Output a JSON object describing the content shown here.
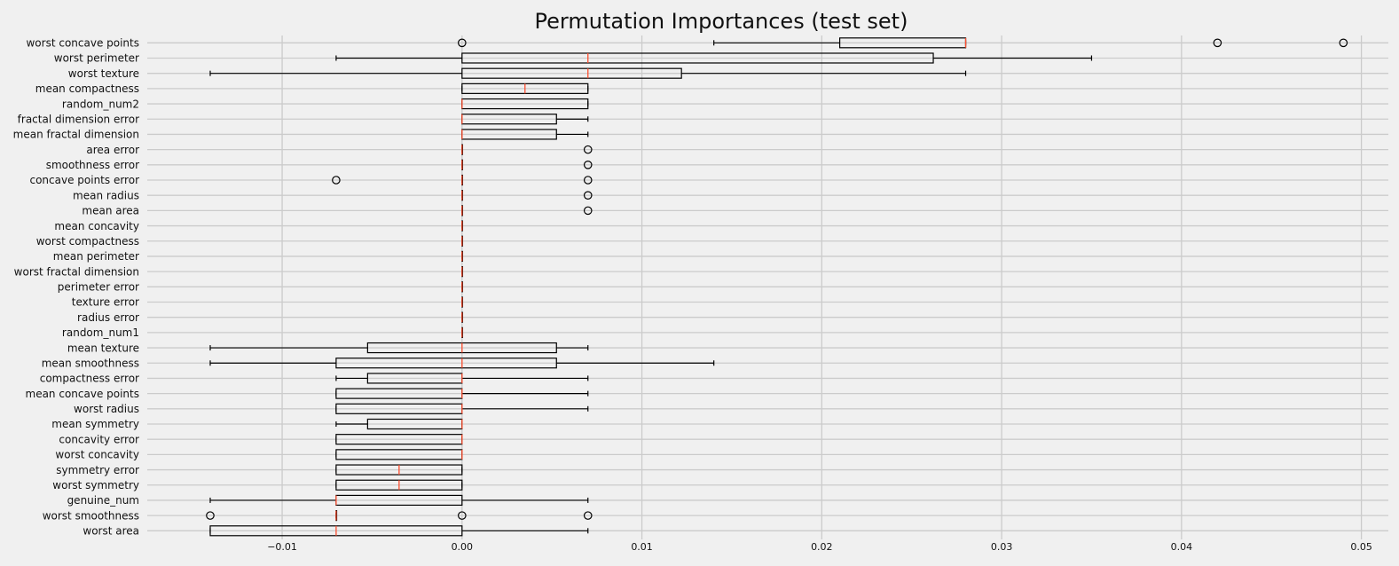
{
  "chart_data": {
    "type": "boxplot",
    "orientation": "horizontal",
    "title": "Permutation Importances (test set)",
    "xlabel": "",
    "ylabel": "",
    "xlim": [
      -0.0175,
      0.0515
    ],
    "xticks": [
      -0.01,
      0.0,
      0.01,
      0.02,
      0.03,
      0.04,
      0.05
    ],
    "xtick_labels": [
      "−0.01",
      "0.00",
      "0.01",
      "0.02",
      "0.03",
      "0.04",
      "0.05"
    ],
    "grid": true,
    "colors": {
      "background": "#f0f0f0",
      "grid": "#cbcbcb",
      "box": "#000000",
      "median": "#fc4f30",
      "random_label": "#ff0000",
      "genuine_label": "#008000",
      "default_label": "#000000"
    },
    "features": [
      {
        "name": "worst concave points",
        "label_color": "default",
        "whislo": 0.014,
        "q1": 0.021,
        "med": 0.028,
        "q3": 0.028,
        "whishi": 0.028,
        "fliers": [
          0.0,
          0.042,
          0.049
        ]
      },
      {
        "name": "worst perimeter",
        "label_color": "default",
        "whislo": -0.007,
        "q1": 0.0,
        "med": 0.007,
        "q3": 0.0262,
        "whishi": 0.035,
        "fliers": []
      },
      {
        "name": "worst texture",
        "label_color": "default",
        "whislo": -0.014,
        "q1": 0.0,
        "med": 0.007,
        "q3": 0.0122,
        "whishi": 0.028,
        "fliers": []
      },
      {
        "name": "mean compactness",
        "label_color": "default",
        "whislo": 0.0,
        "q1": 0.0,
        "med": 0.0035,
        "q3": 0.007,
        "whishi": 0.007,
        "fliers": []
      },
      {
        "name": "random_num2",
        "label_color": "random",
        "whislo": 0.0,
        "q1": 0.0,
        "med": 0.0,
        "q3": 0.007,
        "whishi": 0.007,
        "fliers": []
      },
      {
        "name": "fractal dimension error",
        "label_color": "default",
        "whislo": 0.0,
        "q1": 0.0,
        "med": 0.0,
        "q3": 0.00525,
        "whishi": 0.007,
        "fliers": []
      },
      {
        "name": "mean fractal dimension",
        "label_color": "default",
        "whislo": 0.0,
        "q1": 0.0,
        "med": 0.0,
        "q3": 0.00525,
        "whishi": 0.007,
        "fliers": []
      },
      {
        "name": "area error",
        "label_color": "default",
        "whislo": 0.0,
        "q1": 0.0,
        "med": 0.0,
        "q3": 0.0,
        "whishi": 0.0,
        "fliers": [
          0.007
        ]
      },
      {
        "name": "smoothness error",
        "label_color": "default",
        "whislo": 0.0,
        "q1": 0.0,
        "med": 0.0,
        "q3": 0.0,
        "whishi": 0.0,
        "fliers": [
          0.007
        ]
      },
      {
        "name": "concave points error",
        "label_color": "default",
        "whislo": 0.0,
        "q1": 0.0,
        "med": 0.0,
        "q3": 0.0,
        "whishi": 0.0,
        "fliers": [
          -0.007,
          0.007
        ]
      },
      {
        "name": "mean radius",
        "label_color": "default",
        "whislo": 0.0,
        "q1": 0.0,
        "med": 0.0,
        "q3": 0.0,
        "whishi": 0.0,
        "fliers": [
          0.007
        ]
      },
      {
        "name": "mean area",
        "label_color": "default",
        "whislo": 0.0,
        "q1": 0.0,
        "med": 0.0,
        "q3": 0.0,
        "whishi": 0.0,
        "fliers": [
          0.007
        ]
      },
      {
        "name": "mean concavity",
        "label_color": "default",
        "whislo": 0.0,
        "q1": 0.0,
        "med": 0.0,
        "q3": 0.0,
        "whishi": 0.0,
        "fliers": []
      },
      {
        "name": "worst compactness",
        "label_color": "default",
        "whislo": 0.0,
        "q1": 0.0,
        "med": 0.0,
        "q3": 0.0,
        "whishi": 0.0,
        "fliers": []
      },
      {
        "name": "mean perimeter",
        "label_color": "default",
        "whislo": 0.0,
        "q1": 0.0,
        "med": 0.0,
        "q3": 0.0,
        "whishi": 0.0,
        "fliers": []
      },
      {
        "name": "worst fractal dimension",
        "label_color": "default",
        "whislo": 0.0,
        "q1": 0.0,
        "med": 0.0,
        "q3": 0.0,
        "whishi": 0.0,
        "fliers": []
      },
      {
        "name": "perimeter error",
        "label_color": "default",
        "whislo": 0.0,
        "q1": 0.0,
        "med": 0.0,
        "q3": 0.0,
        "whishi": 0.0,
        "fliers": []
      },
      {
        "name": "texture error",
        "label_color": "default",
        "whislo": 0.0,
        "q1": 0.0,
        "med": 0.0,
        "q3": 0.0,
        "whishi": 0.0,
        "fliers": []
      },
      {
        "name": "radius error",
        "label_color": "default",
        "whislo": 0.0,
        "q1": 0.0,
        "med": 0.0,
        "q3": 0.0,
        "whishi": 0.0,
        "fliers": []
      },
      {
        "name": "random_num1",
        "label_color": "random",
        "whislo": 0.0,
        "q1": 0.0,
        "med": 0.0,
        "q3": 0.0,
        "whishi": 0.0,
        "fliers": []
      },
      {
        "name": "mean texture",
        "label_color": "default",
        "whislo": -0.014,
        "q1": -0.00525,
        "med": 0.0,
        "q3": 0.00525,
        "whishi": 0.007,
        "fliers": []
      },
      {
        "name": "mean smoothness",
        "label_color": "default",
        "whislo": -0.014,
        "q1": -0.007,
        "med": 0.0,
        "q3": 0.00525,
        "whishi": 0.014,
        "fliers": []
      },
      {
        "name": "compactness error",
        "label_color": "default",
        "whislo": -0.007,
        "q1": -0.00525,
        "med": 0.0,
        "q3": 0.0,
        "whishi": 0.007,
        "fliers": []
      },
      {
        "name": "mean concave points",
        "label_color": "default",
        "whislo": -0.007,
        "q1": -0.007,
        "med": 0.0,
        "q3": 0.0,
        "whishi": 0.007,
        "fliers": []
      },
      {
        "name": "worst radius",
        "label_color": "default",
        "whislo": -0.007,
        "q1": -0.007,
        "med": 0.0,
        "q3": 0.0,
        "whishi": 0.007,
        "fliers": []
      },
      {
        "name": "mean symmetry",
        "label_color": "default",
        "whislo": -0.007,
        "q1": -0.00525,
        "med": 0.0,
        "q3": 0.0,
        "whishi": 0.0,
        "fliers": []
      },
      {
        "name": "concavity error",
        "label_color": "default",
        "whislo": -0.007,
        "q1": -0.007,
        "med": 0.0,
        "q3": 0.0,
        "whishi": 0.0,
        "fliers": []
      },
      {
        "name": "worst concavity",
        "label_color": "default",
        "whislo": -0.007,
        "q1": -0.007,
        "med": 0.0,
        "q3": 0.0,
        "whishi": 0.0,
        "fliers": []
      },
      {
        "name": "symmetry error",
        "label_color": "default",
        "whislo": -0.007,
        "q1": -0.007,
        "med": -0.0035,
        "q3": 0.0,
        "whishi": 0.0,
        "fliers": []
      },
      {
        "name": "worst symmetry",
        "label_color": "default",
        "whislo": -0.007,
        "q1": -0.007,
        "med": -0.0035,
        "q3": 0.0,
        "whishi": 0.0,
        "fliers": []
      },
      {
        "name": "genuine_num",
        "label_color": "genuine",
        "whislo": -0.014,
        "q1": -0.007,
        "med": -0.007,
        "q3": 0.0,
        "whishi": 0.007,
        "fliers": []
      },
      {
        "name": "worst smoothness",
        "label_color": "default",
        "whislo": -0.007,
        "q1": -0.007,
        "med": -0.007,
        "q3": -0.007,
        "whishi": -0.007,
        "fliers": [
          -0.014,
          0.0,
          0.007
        ]
      },
      {
        "name": "worst area",
        "label_color": "default",
        "whislo": -0.014,
        "q1": -0.014,
        "med": -0.007,
        "q3": 0.0,
        "whishi": 0.007,
        "fliers": []
      }
    ]
  }
}
